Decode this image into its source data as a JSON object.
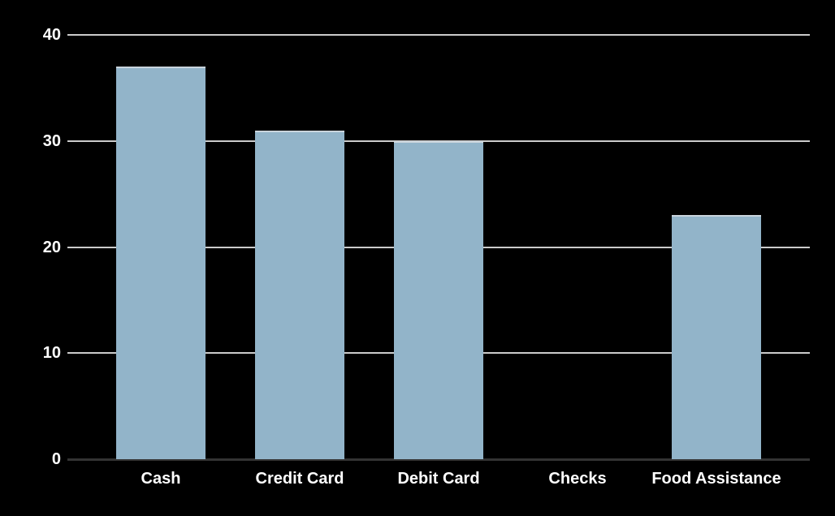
{
  "chart_data": {
    "type": "bar",
    "title": "",
    "xlabel": "",
    "ylabel": "",
    "categories": [
      "Cash",
      "Credit Card",
      "Debit Card",
      "Checks",
      "Food Assistance"
    ],
    "values": [
      37,
      31,
      30,
      0,
      23
    ],
    "ylim": [
      0,
      40
    ],
    "yticks": [
      0,
      10,
      20,
      30,
      40
    ],
    "grid": true,
    "legend": false,
    "colors": {
      "background": "#000000",
      "bar_fill": "#92b4c9",
      "bar_top_edge": "#c9d4dc",
      "gridline": "#cbcbcb",
      "baseline": "#333333",
      "text": "#ffffff"
    }
  }
}
